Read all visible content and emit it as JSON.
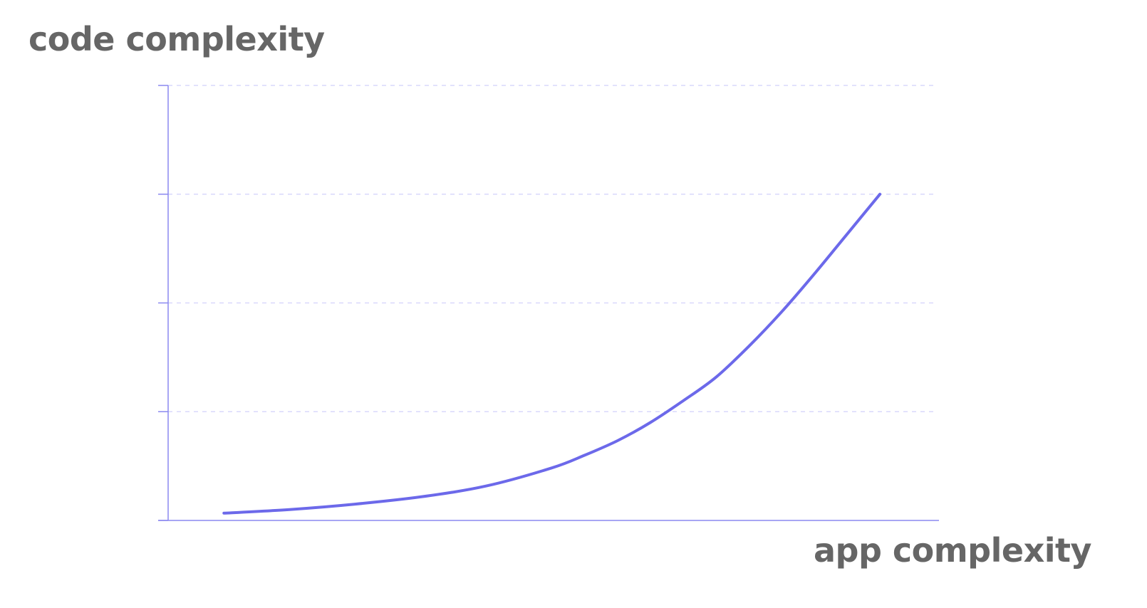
{
  "chart_data": {
    "type": "line",
    "title": "",
    "xlabel": "app complexity",
    "ylabel": "code complexity",
    "grid": true,
    "legend": "none",
    "series": [
      {
        "x": [
          0,
          0.1,
          0.2,
          0.3,
          0.4,
          0.5,
          0.55,
          0.6,
          0.65,
          0.7,
          0.75,
          0.8,
          0.85,
          0.9,
          0.95,
          1.0
        ],
        "values": [
          0.2,
          0.3,
          0.45,
          0.65,
          0.95,
          1.45,
          1.8,
          2.2,
          2.7,
          3.3,
          3.95,
          4.8,
          5.75,
          6.8,
          7.9,
          9.0
        ]
      }
    ],
    "xlim": [
      -0.085,
      1.09
    ],
    "ylim": [
      0,
      12
    ],
    "yticks": [
      0,
      3,
      6,
      9,
      12
    ],
    "colors": {
      "line": "#6c69ea",
      "axis": "#8b89f0",
      "grid": "#d9d8fb",
      "label": "#666666"
    }
  }
}
